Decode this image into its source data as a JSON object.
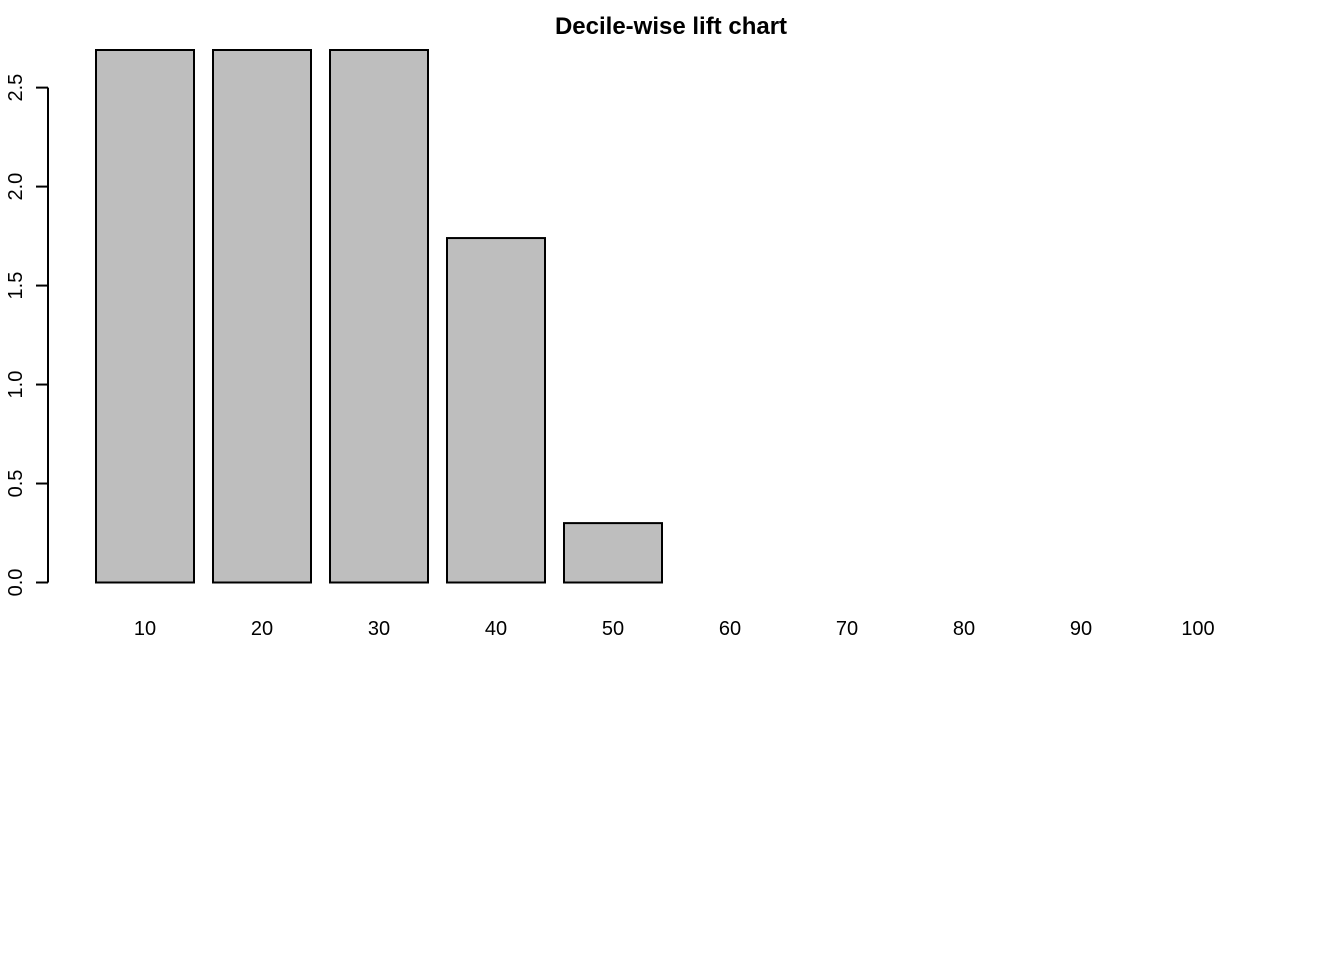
{
  "chart_data": {
    "type": "bar",
    "title": "Decile-wise lift chart",
    "xlabel": "",
    "ylabel": "",
    "categories": [
      "10",
      "20",
      "30",
      "40",
      "50",
      "60",
      "70",
      "80",
      "90",
      "100"
    ],
    "values": [
      2.69,
      2.69,
      2.69,
      1.74,
      0.3,
      0,
      0,
      0,
      0,
      0
    ],
    "ylim": [
      0,
      2.69
    ],
    "yticks": [
      0.0,
      0.5,
      1.0,
      1.5,
      2.0,
      2.5
    ],
    "ytick_labels": [
      "0.0",
      "0.5",
      "1.0",
      "1.5",
      "2.0",
      "2.5"
    ],
    "grid": false,
    "legend": "none",
    "colors": {
      "bar_fill": "#bebebe",
      "bar_stroke": "#000000",
      "axis": "#000000",
      "text": "#000000"
    }
  }
}
